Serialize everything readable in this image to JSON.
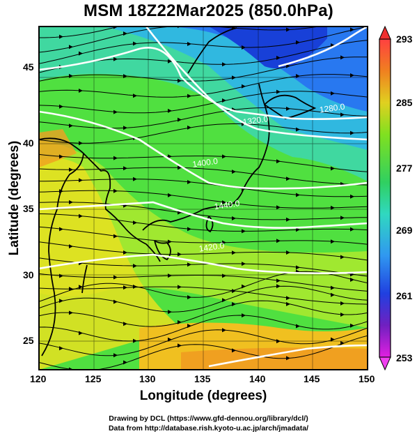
{
  "title": "MSM 18Z22Mar2025 (850.0hPa)",
  "map": {
    "lon_range": [
      120,
      150
    ],
    "lat_range": [
      22.4,
      47.6
    ],
    "x_ticks": [
      "120",
      "125",
      "130",
      "135",
      "140",
      "145",
      "150"
    ],
    "y_ticks": [
      "25",
      "30",
      "35",
      "40",
      "45"
    ],
    "xlabel": "Longitude (degrees)",
    "ylabel": "Latitude  (degrees)",
    "grid": true,
    "contour_labels": [
      {
        "text": "1280.0",
        "lon": 146.8,
        "lat": 41.4
      },
      {
        "text": "1320.0",
        "lon": 139.8,
        "lat": 40.5
      },
      {
        "text": "1400.0",
        "lon": 135.2,
        "lat": 37.4
      },
      {
        "text": "1440.0",
        "lon": 137.2,
        "lat": 34.3
      },
      {
        "text": "1420.0",
        "lon": 135.8,
        "lat": 31.2
      }
    ]
  },
  "colorbar": {
    "ticks": [
      "293",
      "285",
      "277",
      "269",
      "261",
      "253"
    ],
    "min": 253,
    "max": 293
  },
  "credits": {
    "line1": "Drawing by DCL (https://www.gfd-dennou.org/library/dcl/)",
    "line2": "Data from http://database.rish.kyoto-u.ac.jp/arch/jmadata/"
  },
  "colors": {
    "land_outline": "#000000",
    "contour": "#ffffff",
    "streamline": "#000000"
  }
}
